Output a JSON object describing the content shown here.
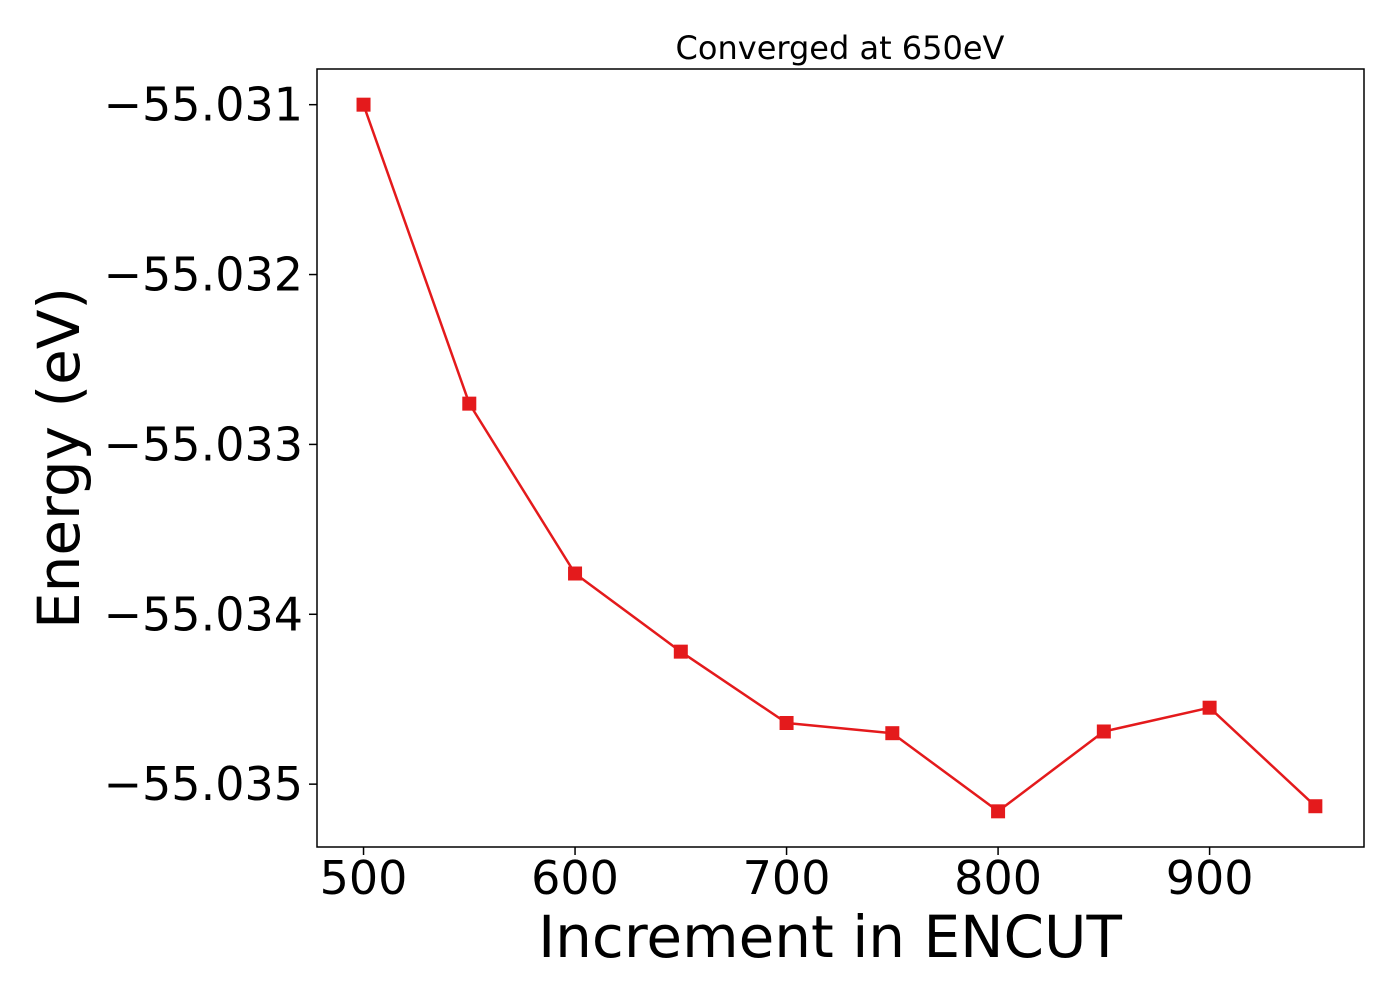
{
  "chart_data": {
    "type": "line",
    "title": "Converged at 650eV",
    "xlabel": "Increment in ENCUT",
    "ylabel": "Energy (eV)",
    "xlim": [
      478,
      973
    ],
    "ylim": [
      -55.03537,
      -55.03079
    ],
    "xticks": [
      500,
      600,
      700,
      800,
      900
    ],
    "xtick_labels": [
      "500",
      "600",
      "700",
      "800",
      "900"
    ],
    "yticks": [
      -55.031,
      -55.032,
      -55.033,
      -55.034,
      -55.035
    ],
    "ytick_labels": [
      "−55.031",
      "−55.032",
      "−55.033",
      "−55.034",
      "−55.035"
    ],
    "grid": false,
    "legend": "none",
    "series": [
      {
        "color": "#e41a1c",
        "marker": "square",
        "x": [
          500,
          550,
          600,
          650,
          700,
          750,
          800,
          850,
          900,
          950
        ],
        "y": [
          -55.031,
          -55.03276,
          -55.03376,
          -55.03422,
          -55.03464,
          -55.0347,
          -55.03516,
          -55.03469,
          -55.03455,
          -55.03513
        ]
      }
    ]
  }
}
